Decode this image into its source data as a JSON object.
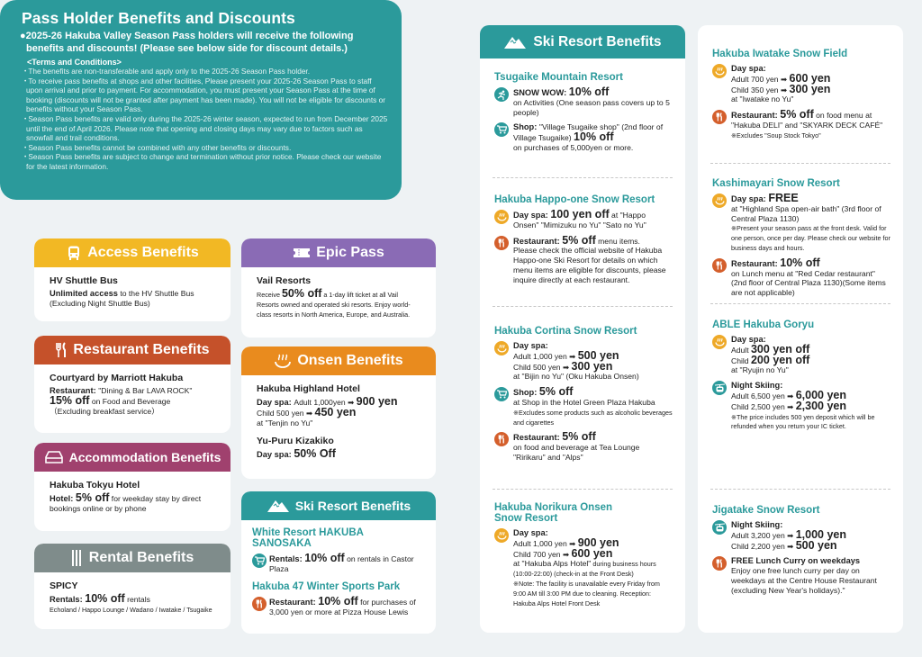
{
  "colors": {
    "teal": "#2b9a9b",
    "access": "#f2b824",
    "restaurant": "#c5512a",
    "accommodation": "#a0416e",
    "rental": "#7f8c8b",
    "epic": "#8a6bb5",
    "onsen": "#e98b1e",
    "spa_icon": "#eea928",
    "fork_icon": "#d45f2c"
  },
  "pass_box": {
    "title": "Pass Holder Benefits and Discounts",
    "lead": "●2025-26 Hakuba Valley Season Pass holders will receive the following benefits and discounts! (Please see below side for discount details.)",
    "terms_heading": "<Terms and Conditions>",
    "terms": [
      "The benefits are non-transferable and apply only to the 2025-26 Season Pass holder.",
      "To receive pass benefits at shops and other facilities, Please present your 2025-26 Season Pass to staff upon arrival and prior to payment. For accommodation, you must present your Season Pass at the time of booking (discounts will not be granted after payment has been made). You will not be eligible for discounts or benefits without your Season Pass.",
      "Season Pass benefits are valid only during the 2025-26 winter season, expected to run from December 2025 until the end of  April 2026. Please note that opening and closing days may vary due to factors  such as snowfall and trail conditions.",
      "Season Pass benefits cannot be combined with any other benefits or discounts.",
      "Season Pass benefits are subject to change and termination without prior notice. Please check our website for the latest information."
    ]
  },
  "cards": [
    {
      "key": "access",
      "label": "Access Benefits",
      "icon": "bus-icon",
      "entries": [
        {
          "name": "HV Shuttle Bus",
          "lines": [
            [
              [
                "b",
                "Unlimited access"
              ],
              [
                "t",
                " to the HV Shuttle Bus"
              ]
            ],
            [
              [
                "t",
                "(Excluding Night Shuttle Bus)"
              ]
            ]
          ]
        }
      ]
    },
    {
      "key": "epic",
      "label": "Epic Pass",
      "icon": "ticket-icon",
      "entries": [
        {
          "name": "Vail Resorts",
          "lines": [
            [
              [
                "s",
                "Receive "
              ],
              [
                "x",
                "50% off"
              ],
              [
                "s",
                " a 1-day lift ticket at all Vail Resorts owned and operated ski resorts. Enjoy world-class resorts in North America, Europe, and Australia."
              ]
            ]
          ]
        }
      ]
    },
    {
      "key": "restaurant",
      "label": "Restaurant Benefits",
      "icon": "fork-knife-icon",
      "entries": [
        {
          "name": "Courtyard by Marriott Hakuba",
          "lines": [
            [
              [
                "b",
                "Restaurant: "
              ],
              [
                "t",
                "\"Dining & Bar LAVA ROCK\""
              ]
            ],
            [
              [
                "x",
                "15% off"
              ],
              [
                "t",
                " on Food and Beverage"
              ]
            ],
            [
              [
                "t",
                "（Excluding breakfast service）"
              ]
            ]
          ]
        }
      ]
    },
    {
      "key": "onsen",
      "label": "Onsen Benefits",
      "icon": "onsen-icon",
      "entries": [
        {
          "name": "Hakuba Highland Hotel",
          "lines": [
            [
              [
                "b",
                "Day spa: "
              ],
              [
                "t",
                "Adult 1,000yen ➡ "
              ],
              [
                "x",
                "900 yen"
              ]
            ],
            [
              [
                "t",
                "Child 500 yen ➡ "
              ],
              [
                "x",
                "450 yen"
              ]
            ],
            [
              [
                "t",
                "at \"Tenjin no Yu\""
              ]
            ]
          ]
        },
        {
          "name": "Yu-Puru Kizakiko",
          "lines": [
            [
              [
                "b",
                "Day spa: "
              ],
              [
                "x",
                "50% Off"
              ]
            ]
          ]
        }
      ]
    },
    {
      "key": "accommodation",
      "label": "Accommodation Benefits",
      "icon": "bed-icon",
      "entries": [
        {
          "name": "Hakuba Tokyu Hotel",
          "lines": [
            [
              [
                "b",
                "Hotel: "
              ],
              [
                "x",
                "5% off"
              ],
              [
                "t",
                "  for weekday stay by direct bookings online or by phone"
              ]
            ]
          ]
        }
      ]
    },
    {
      "key": "rental",
      "label": "Rental Benefits",
      "icon": "skis-icon",
      "entries": [
        {
          "name": "SPICY",
          "lines": [
            [
              [
                "b",
                "Rentals: "
              ],
              [
                "x",
                "10% off"
              ],
              [
                "t",
                " rentals"
              ]
            ],
            [
              [
                "s",
                "Echoland / Happo Lounge / Wadano / Iwatake / Tsugaike"
              ]
            ]
          ]
        }
      ]
    },
    {
      "key": "ski",
      "label": "Ski Resort Benefits",
      "icon": "mountain-icon",
      "entries": [
        {
          "name": "White Resort HAKUBA SANOSAKA",
          "teal": true,
          "items": [
            {
              "icon": "cart-icon",
              "lines": [
                [
                  [
                    "b",
                    "Rentals: "
                  ],
                  [
                    "x",
                    "10% off"
                  ],
                  [
                    "t",
                    " on rentals in Castor Plaza"
                  ]
                ]
              ]
            }
          ]
        },
        {
          "name": "Hakuba 47 Winter Sports Park",
          "teal": true,
          "items": [
            {
              "icon": "fork-knife-icon",
              "lines": [
                [
                  [
                    "b",
                    "Restaurant: "
                  ],
                  [
                    "x",
                    "10% off"
                  ],
                  [
                    "t",
                    " for purchases of 3,000 yen or more at Pizza House Lewis"
                  ]
                ]
              ]
            }
          ]
        }
      ]
    }
  ],
  "ski_columns": [
    {
      "header": "Ski Resort Benefits",
      "header_icon": "mountain-icon",
      "resorts": [
        {
          "name": "Tsugaike Mountain Resort",
          "items": [
            {
              "icon": "runner-icon",
              "lines": [
                [
                  [
                    "b",
                    "SNOW WOW: "
                  ],
                  [
                    "x",
                    "10% off"
                  ]
                ],
                [
                  [
                    "t",
                    "on Activities (One season pass covers up to 5 people)"
                  ]
                ]
              ]
            },
            {
              "icon": "cart-icon",
              "lines": [
                [
                  [
                    "b",
                    "Shop: "
                  ],
                  [
                    "t",
                    " \"Village Tsugaike shop\" (2nd floor of Village Tsugaike) "
                  ],
                  [
                    "x",
                    "10% off"
                  ]
                ],
                [
                  [
                    "t",
                    "on purchases of 5,000yen or more."
                  ]
                ]
              ]
            }
          ]
        },
        {
          "name": "Hakuba Happo-one Snow Resort",
          "items": [
            {
              "icon": "onsen-icon",
              "lines": [
                [
                  [
                    "b",
                    "Day spa: "
                  ],
                  [
                    "x",
                    "100 yen off"
                  ],
                  [
                    "t",
                    " at \"Happo Onsen\" \"Mimizuku no Yu\" \"Sato no Yu\""
                  ]
                ]
              ]
            },
            {
              "icon": "fork-knife-icon",
              "lines": [
                [
                  [
                    "b",
                    "Restaurant: "
                  ],
                  [
                    "x",
                    "5% off"
                  ],
                  [
                    "t",
                    " menu items."
                  ]
                ],
                [
                  [
                    "t",
                    "Please check the official website of Hakuba Happo-one Ski Resort for details on which menu items are eligible for discounts, please inquire directly at each restaurant."
                  ]
                ]
              ]
            }
          ]
        },
        {
          "name": "Hakuba Cortina Snow Resort",
          "items": [
            {
              "icon": "onsen-icon",
              "lines": [
                [
                  [
                    "b",
                    "Day spa:"
                  ]
                ],
                [
                  [
                    "t",
                    "Adult 1,000 yen ➡ "
                  ],
                  [
                    "x",
                    "500 yen"
                  ]
                ],
                [
                  [
                    "t",
                    "Child 500 yen ➡ "
                  ],
                  [
                    "x",
                    "300 yen"
                  ]
                ],
                [
                  [
                    "t",
                    "at \"Bijin no Yu\" (Oku Hakuba Onsen)"
                  ]
                ]
              ]
            },
            {
              "icon": "cart-icon",
              "lines": [
                [
                  [
                    "b",
                    "Shop: "
                  ],
                  [
                    "x",
                    "5% off"
                  ]
                ],
                [
                  [
                    "t",
                    "at Shop in the Hotel Green Plaza Hakuba"
                  ]
                ],
                [
                  [
                    "s",
                    "※Excludes some products such as alcoholic beverages and cigarettes"
                  ]
                ]
              ]
            },
            {
              "icon": "fork-knife-icon",
              "lines": [
                [
                  [
                    "b",
                    "Restaurant: "
                  ],
                  [
                    "x",
                    "5% off"
                  ]
                ],
                [
                  [
                    "t",
                    "on food and beverage at Tea Lounge \"Ririkaru\" and \"Alps\""
                  ]
                ]
              ]
            }
          ]
        },
        {
          "name": "Hakuba Norikura Onsen Snow Resort",
          "items": [
            {
              "icon": "onsen-icon",
              "lines": [
                [
                  [
                    "b",
                    "Day spa:"
                  ]
                ],
                [
                  [
                    "t",
                    "Adult 1,000 yen ➡ "
                  ],
                  [
                    "x",
                    "900 yen"
                  ]
                ],
                [
                  [
                    "t",
                    "Child 700 yen ➡ "
                  ],
                  [
                    "x",
                    "600 yen"
                  ]
                ],
                [
                  [
                    "t",
                    "at \"Hakuba Alps Hotel\""
                  ],
                  [
                    "s",
                    " during business hours (10:00-22:00) (check-in at the Front Desk)"
                  ]
                ],
                [
                  [
                    "s",
                    "※Note: The facility is unavailable every Friday from 9:00 AM till  3:00 PM due to cleaning. Reception: Hakuba Alps Hotel Front Desk"
                  ]
                ]
              ]
            }
          ]
        }
      ]
    },
    {
      "header": "",
      "resorts": [
        {
          "name": "Hakuba Iwatake Snow Field",
          "items": [
            {
              "icon": "onsen-icon",
              "lines": [
                [
                  [
                    "b",
                    "Day spa:"
                  ]
                ],
                [
                  [
                    "t",
                    "Adult 700 yen ➡ "
                  ],
                  [
                    "x",
                    "600 yen"
                  ]
                ],
                [
                  [
                    "t",
                    "Child 350 yen ➡ "
                  ],
                  [
                    "x",
                    "300 yen"
                  ]
                ],
                [
                  [
                    "t",
                    "at \"Iwatake no Yu\""
                  ]
                ]
              ]
            },
            {
              "icon": "fork-knife-icon",
              "lines": [
                [
                  [
                    "b",
                    "Restaurant: "
                  ],
                  [
                    "x",
                    "5% off"
                  ],
                  [
                    "t",
                    " on food menu at \"Hakuba DELI\" and \"SKYARK DECK CAFÉ\""
                  ]
                ],
                [
                  [
                    "s",
                    "※Excludes \"Soup Stock Tokyo\""
                  ]
                ]
              ]
            }
          ]
        },
        {
          "name": "Kashimayari Snow Resort",
          "items": [
            {
              "icon": "onsen-icon",
              "lines": [
                [
                  [
                    "b",
                    "Day spa: "
                  ],
                  [
                    "x",
                    "FREE"
                  ]
                ],
                [
                  [
                    "t",
                    "at \"Highland Spa open-air bath\" (3rd floor of Central Plaza 1130)"
                  ]
                ],
                [
                  [
                    "s",
                    "※Present your season pass at the front desk. Valid for one person, once per day. Please check our website for business days and hours."
                  ]
                ]
              ]
            },
            {
              "icon": "fork-knife-icon",
              "lines": [
                [
                  [
                    "b",
                    "Restaurant: "
                  ],
                  [
                    "x",
                    "10% off"
                  ]
                ],
                [
                  [
                    "t",
                    "on Lunch menu at \"Red Cedar restaurant\" (2nd floor of Central Plaza 1130)(Some items are not applicable)"
                  ]
                ]
              ]
            }
          ]
        },
        {
          "name": "ABLE Hakuba Goryu",
          "items": [
            {
              "icon": "onsen-icon",
              "lines": [
                [
                  [
                    "b",
                    "Day spa:"
                  ]
                ],
                [
                  [
                    "t",
                    "Adult "
                  ],
                  [
                    "x",
                    "300 yen off"
                  ]
                ],
                [
                  [
                    "t",
                    "Child "
                  ],
                  [
                    "x",
                    "200 yen off"
                  ]
                ],
                [
                  [
                    "t",
                    "at \"Ryujin no Yu\""
                  ]
                ]
              ]
            },
            {
              "icon": "gondola-icon",
              "lines": [
                [
                  [
                    "b",
                    "Night Skiing:"
                  ]
                ],
                [
                  [
                    "t",
                    "Adult 6,500 yen ➡ "
                  ],
                  [
                    "x",
                    "6,000 yen"
                  ]
                ],
                [
                  [
                    "t",
                    "Child 2,500 yen ➡ "
                  ],
                  [
                    "x",
                    "2,300 yen"
                  ]
                ],
                [
                  [
                    "s",
                    "※The price includes 500 yen deposit which will be refunded when you return your IC ticket."
                  ]
                ]
              ]
            }
          ]
        },
        {
          "name": "Jigatake Snow Resort",
          "items": [
            {
              "icon": "gondola-icon",
              "lines": [
                [
                  [
                    "b",
                    "Night Skiing:"
                  ]
                ],
                [
                  [
                    "t",
                    "Adult 3,200 yen ➡ "
                  ],
                  [
                    "x",
                    "1,000 yen"
                  ]
                ],
                [
                  [
                    "t",
                    "Child 2,200 yen ➡ "
                  ],
                  [
                    "x",
                    "500 yen"
                  ]
                ]
              ]
            },
            {
              "icon": "fork-knife-icon",
              "lines": [
                [
                  [
                    "b",
                    "FREE Lunch Curry on weekdays"
                  ]
                ],
                [
                  [
                    "t",
                    "Enjoy one free lunch curry per day on weekdays at the Centre House Restaurant (excluding New Year's holidays).\""
                  ]
                ]
              ]
            }
          ]
        }
      ]
    }
  ]
}
